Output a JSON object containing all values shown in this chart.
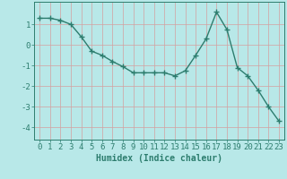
{
  "title": "",
  "xlabel": "Humidex (Indice chaleur)",
  "ylabel": "",
  "x": [
    0,
    1,
    2,
    3,
    4,
    5,
    6,
    7,
    8,
    9,
    10,
    11,
    12,
    13,
    14,
    15,
    16,
    17,
    18,
    19,
    20,
    21,
    22,
    23
  ],
  "y": [
    1.3,
    1.3,
    1.2,
    1.0,
    0.4,
    -0.3,
    -0.5,
    -0.8,
    -1.05,
    -1.35,
    -1.35,
    -1.35,
    -1.35,
    -1.5,
    -1.25,
    -0.5,
    0.3,
    1.6,
    0.75,
    -1.1,
    -1.5,
    -2.2,
    -3.0,
    -3.7
  ],
  "line_color": "#2d7d6e",
  "marker": "+",
  "bg_color": "#b8e8e8",
  "grid_color": "#d4a0a0",
  "axis_color": "#2d7d6e",
  "text_color": "#2d7d6e",
  "xlim": [
    -0.5,
    23.5
  ],
  "ylim": [
    -4.6,
    2.1
  ],
  "yticks": [
    1,
    0,
    -1,
    -2,
    -3,
    -4
  ],
  "xticks": [
    0,
    1,
    2,
    3,
    4,
    5,
    6,
    7,
    8,
    9,
    10,
    11,
    12,
    13,
    14,
    15,
    16,
    17,
    18,
    19,
    20,
    21,
    22,
    23
  ],
  "xlabel_fontsize": 7,
  "tick_fontsize": 6.5,
  "linewidth": 1.0,
  "markersize": 4,
  "markeredgewidth": 1.0
}
